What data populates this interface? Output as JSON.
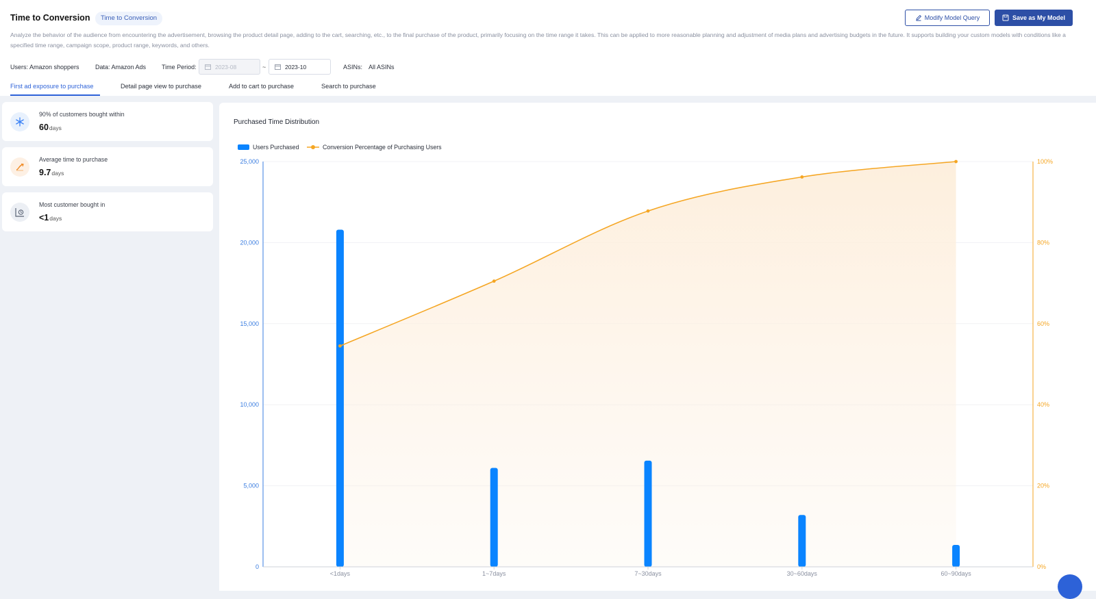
{
  "header": {
    "title": "Time to Conversion",
    "tag": "Time to Conversion",
    "modify_button": "Modify Model Query",
    "save_button": "Save as My Model",
    "description": "Analyze the behavior of the audience from encountering the advertisement, browsing the product detail page, adding to the cart, searching, etc., to the final purchase of the product, primarily focusing on the time range it takes. This can be applied to more reasonable planning and adjustment of media plans and advertising budgets in the future. It supports building your custom models with conditions like a specified time range, campaign scope, product range, keywords, and others."
  },
  "filters": {
    "users": "Users: Amazon shoppers",
    "data": "Data: Amazon Ads",
    "time_period_label": "Time Period:",
    "start": "2023-08",
    "separator": "~",
    "end": "2023-10",
    "asins_label": "ASINs:",
    "asins_value": "All ASINs"
  },
  "tabs": [
    {
      "label": "First ad exposure to purchase",
      "active": true
    },
    {
      "label": "Detail page view to purchase",
      "active": false
    },
    {
      "label": "Add to cart to purchase",
      "active": false
    },
    {
      "label": "Search to purchase",
      "active": false
    }
  ],
  "cards": [
    {
      "label": "90% of customers bought within",
      "value": "60",
      "unit": "days",
      "icon": "snowflake-icon"
    },
    {
      "label": "Average time to purchase",
      "value": "9.7",
      "unit": "days",
      "icon": "trend-icon"
    },
    {
      "label": "Most customer bought in",
      "value": "<1",
      "unit": "days",
      "icon": "chart-clock-icon"
    }
  ],
  "colors": {
    "accent": "#2d4fa6",
    "bar": "#0a84ff",
    "line": "#f5a623"
  },
  "chart_data": {
    "type": "bar",
    "title": "Purchased Time Distribution",
    "categories": [
      "<1days",
      "1~7days",
      "7~30days",
      "30~60days",
      "60~90days"
    ],
    "series": [
      {
        "name": "Users Purchased",
        "type": "bar",
        "axis": "left",
        "values": [
          20800,
          6100,
          6550,
          3200,
          1350
        ]
      },
      {
        "name": "Conversion Percentage of Purchasing Users",
        "type": "line",
        "axis": "right",
        "values": [
          54.5,
          70.5,
          87.8,
          96.2,
          100
        ]
      }
    ],
    "y_left": {
      "range": [
        0,
        25000
      ],
      "ticks": [
        "0",
        "5,000",
        "10,000",
        "15,000",
        "20,000",
        "25,000"
      ]
    },
    "y_right": {
      "range": [
        0,
        100
      ],
      "ticks": [
        "0%",
        "20%",
        "40%",
        "60%",
        "80%",
        "100%"
      ]
    },
    "legend_position": "top-left",
    "grid": true
  }
}
